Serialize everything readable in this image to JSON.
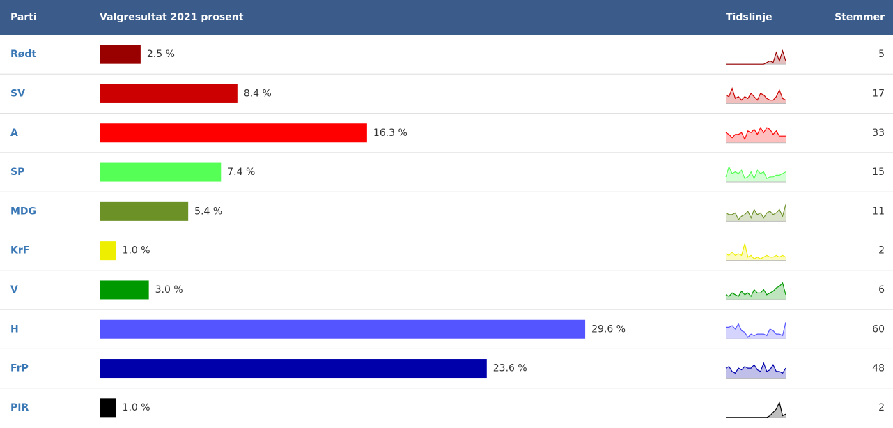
{
  "header": {
    "party": "Parti",
    "result": "Valgresultat 2021 prosent",
    "timeline": "Tidslinje",
    "votes": "Stemmer"
  },
  "rows": [
    {
      "party": "Rødt",
      "percent": 2.5,
      "percent_label": "2.5 %",
      "color": "#990000",
      "timeline": [
        0,
        0,
        0,
        0,
        0,
        0,
        0,
        0,
        0,
        0,
        0,
        0,
        0,
        1,
        2,
        1,
        7,
        2,
        8,
        2
      ],
      "votes": 5
    },
    {
      "party": "SV",
      "percent": 8.4,
      "percent_label": "8.4 %",
      "color": "#cc0000",
      "timeline": [
        5,
        4,
        9,
        3,
        4,
        2,
        4,
        3,
        6,
        4,
        2,
        6,
        5,
        3,
        2,
        2,
        4,
        8,
        3,
        2
      ],
      "votes": 17
    },
    {
      "party": "A",
      "percent": 16.3,
      "percent_label": "16.3 %",
      "color": "#ff0000",
      "timeline": [
        6,
        5,
        3,
        5,
        5,
        6,
        2,
        7,
        6,
        8,
        5,
        9,
        6,
        9,
        8,
        5,
        7,
        4,
        4,
        4
      ],
      "votes": 33
    },
    {
      "party": "SP",
      "percent": 7.4,
      "percent_label": "7.4 %",
      "color": "#55ff55",
      "timeline": [
        3,
        9,
        5,
        6,
        5,
        7,
        2,
        3,
        6,
        2,
        7,
        5,
        6,
        2,
        3,
        3,
        4,
        4,
        5,
        6
      ],
      "votes": 15
    },
    {
      "party": "MDG",
      "percent": 5.4,
      "percent_label": "5.4 %",
      "color": "#6b9127",
      "timeline": [
        5,
        4,
        4,
        5,
        1,
        3,
        4,
        6,
        2,
        7,
        4,
        5,
        2,
        5,
        6,
        4,
        5,
        7,
        3,
        10
      ],
      "votes": 11
    },
    {
      "party": "KrF",
      "percent": 1.0,
      "percent_label": "1.0 %",
      "color": "#eeee00",
      "timeline": [
        4,
        3,
        5,
        3,
        4,
        3,
        10,
        2,
        3,
        1,
        2,
        1,
        2,
        3,
        2,
        2,
        3,
        2,
        3,
        2
      ],
      "votes": 2
    },
    {
      "party": "V",
      "percent": 3.0,
      "percent_label": "3.0 %",
      "color": "#009900",
      "timeline": [
        3,
        2,
        4,
        3,
        2,
        5,
        3,
        4,
        2,
        6,
        4,
        4,
        6,
        3,
        4,
        5,
        7,
        8,
        10,
        3
      ],
      "votes": 6
    },
    {
      "party": "H",
      "percent": 29.6,
      "percent_label": "29.6 %",
      "color": "#5555ff",
      "timeline": [
        7,
        7,
        8,
        6,
        9,
        5,
        4,
        1,
        3,
        2,
        3,
        3,
        3,
        2,
        6,
        5,
        3,
        3,
        2,
        10
      ],
      "votes": 60
    },
    {
      "party": "FrP",
      "percent": 23.6,
      "percent_label": "23.6 %",
      "color": "#0000aa",
      "timeline": [
        6,
        7,
        4,
        3,
        6,
        5,
        7,
        6,
        6,
        8,
        5,
        4,
        9,
        4,
        5,
        8,
        4,
        4,
        3,
        6
      ],
      "votes": 48
    },
    {
      "party": "PIR",
      "percent": 1.0,
      "percent_label": "1.0 %",
      "color": "#000000",
      "timeline": [
        0,
        0,
        0,
        0,
        0,
        0,
        0,
        0,
        0,
        0,
        0,
        0,
        0,
        0,
        1,
        3,
        5,
        9,
        1,
        2
      ],
      "votes": 2
    }
  ]
}
